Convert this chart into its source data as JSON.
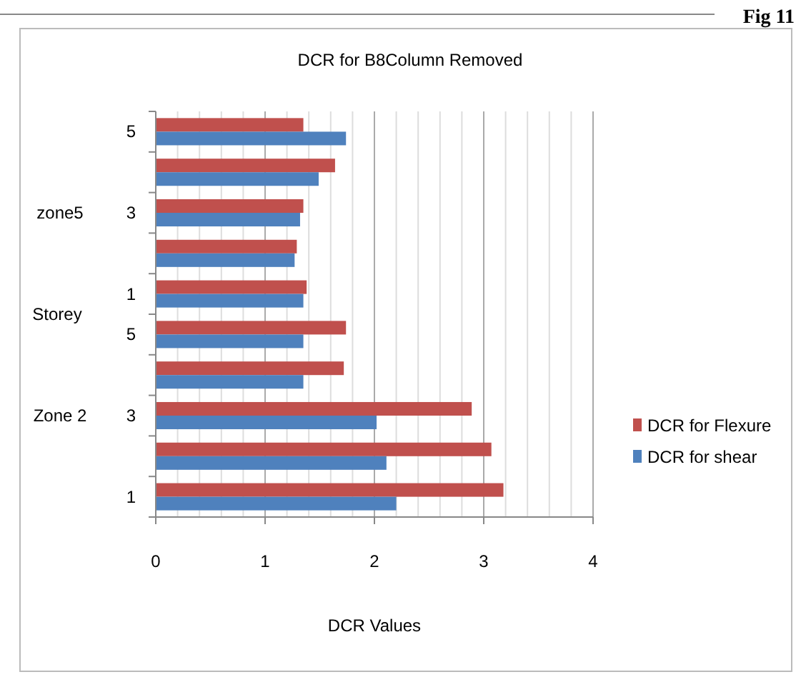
{
  "chart_data": {
    "type": "bar",
    "orientation": "horizontal",
    "title": "DCR for B8Column Removed",
    "xlabel": "DCR Values",
    "ylabel": "Storey",
    "categories": [
      "5",
      null,
      "3",
      null,
      "1",
      "5",
      null,
      "3",
      null,
      "1"
    ],
    "series": [
      {
        "name": "DCR for Flexure",
        "color": "#c0504d",
        "values": [
          1.35,
          1.64,
          1.35,
          1.29,
          1.38,
          1.74,
          1.72,
          2.89,
          3.07,
          3.18
        ]
      },
      {
        "name": "DCR for shear",
        "color": "#4f81bd",
        "values": [
          1.74,
          1.49,
          1.32,
          1.27,
          1.35,
          1.35,
          1.35,
          2.02,
          2.11,
          2.2
        ]
      }
    ],
    "xlim": [
      0,
      4
    ],
    "xticks": [
      0,
      {
        "value": 0.2,
        "label": null
      },
      {
        "value": 0.4,
        "label": null
      },
      {
        "value": 0.6,
        "label": null
      },
      {
        "value": 0.8,
        "label": null
      },
      1,
      {
        "value": 1.2,
        "label": null
      },
      {
        "value": 1.4,
        "label": null
      },
      {
        "value": 1.6,
        "label": null
      },
      {
        "value": 1.8,
        "label": null
      },
      2,
      {
        "value": 2.2,
        "label": null
      },
      {
        "value": 2.4,
        "label": null
      },
      {
        "value": 2.6,
        "label": null
      },
      {
        "value": 2.8,
        "label": null
      },
      3,
      {
        "value": 3.2,
        "label": null
      },
      {
        "value": 3.4,
        "label": null
      },
      {
        "value": 3.6,
        "label": null
      },
      {
        "value": 3.8,
        "label": null
      },
      4
    ],
    "grid": true,
    "legend": "right",
    "annotations": [
      "zone5",
      "Zone 2",
      "Fig 11"
    ]
  }
}
